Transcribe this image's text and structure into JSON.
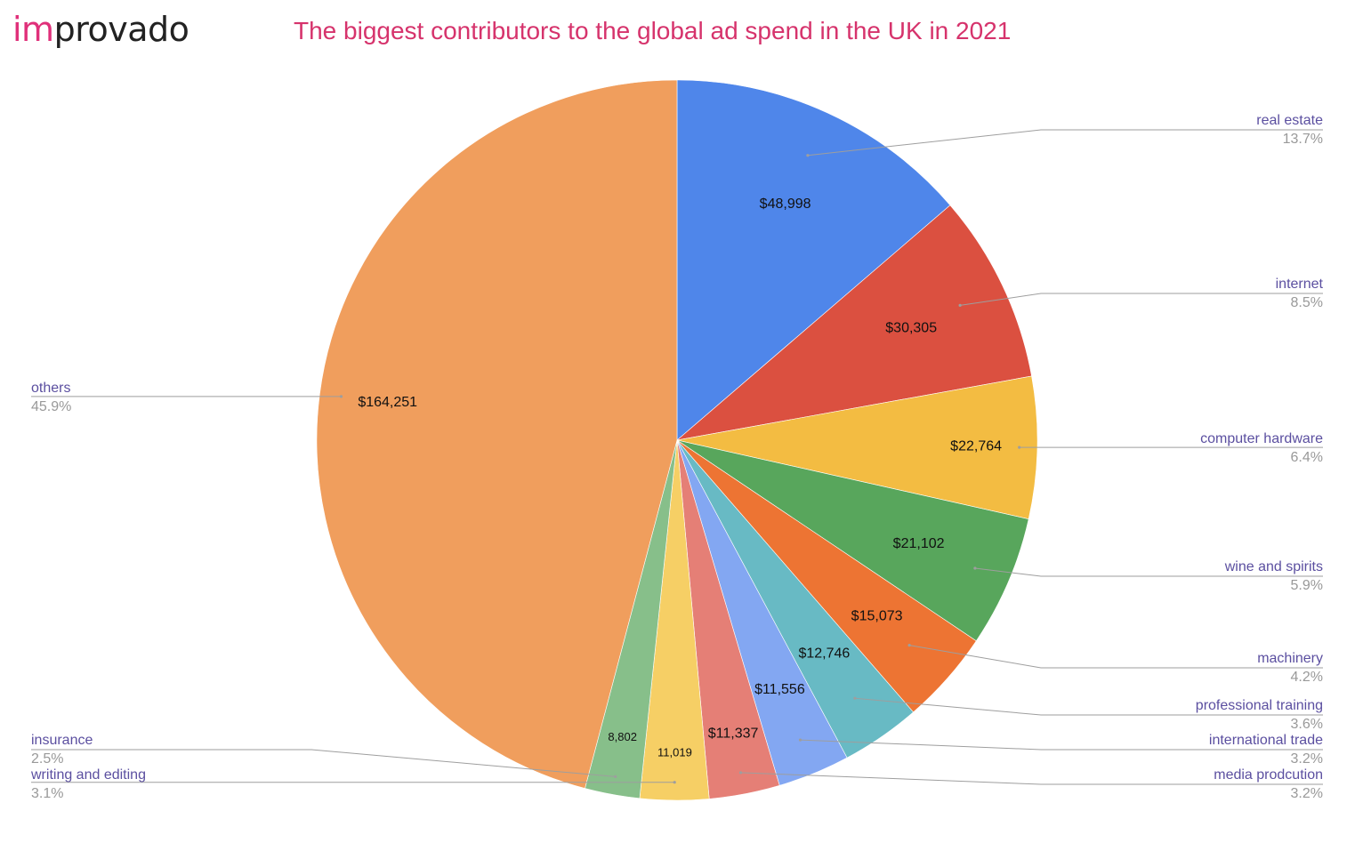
{
  "logo": {
    "accent": "im",
    "rest": "provado"
  },
  "colors": {
    "title": "#d6336c",
    "label_name": "#5b4fa0",
    "label_pct": "#999999",
    "leader": "#9e9e9e"
  },
  "chart_data": {
    "type": "pie",
    "title": "The biggest contributors to the global ad spend in the UK in 2021",
    "start_angle_deg": 0,
    "direction": "clockwise",
    "legend": "none",
    "slices": [
      {
        "label": "real estate",
        "value": 48998,
        "value_label": "$48,998",
        "percent_label": "13.7%",
        "color": "#4f86ea"
      },
      {
        "label": "internet",
        "value": 30305,
        "value_label": "$30,305",
        "percent_label": "8.5%",
        "color": "#db5040"
      },
      {
        "label": "computer hardware",
        "value": 22764,
        "value_label": "$22,764",
        "percent_label": "6.4%",
        "color": "#f3bc42"
      },
      {
        "label": "wine and spirits",
        "value": 21102,
        "value_label": "$21,102",
        "percent_label": "5.9%",
        "color": "#58a65c"
      },
      {
        "label": "machinery",
        "value": 15073,
        "value_label": "$15,073",
        "percent_label": "4.2%",
        "color": "#ed7433"
      },
      {
        "label": "professional training",
        "value": 12746,
        "value_label": "$12,746",
        "percent_label": "3.6%",
        "color": "#68bac4"
      },
      {
        "label": "international trade",
        "value": 11556,
        "value_label": "$11,556",
        "percent_label": "3.2%",
        "color": "#83a7f2"
      },
      {
        "label": "media prodcution",
        "value": 11337,
        "value_label": "$11,337",
        "percent_label": "3.2%",
        "color": "#e57f76"
      },
      {
        "label": "writing and editing",
        "value": 11019,
        "value_label": "11,019",
        "percent_label": "3.1%",
        "color": "#f6cf65"
      },
      {
        "label": "insurance",
        "value": 8802,
        "value_label": "8,802",
        "percent_label": "2.5%",
        "color": "#87bf8a"
      },
      {
        "label": "others",
        "value": 164251,
        "value_label": "$164,251",
        "percent_label": "45.9%",
        "color": "#f09e5d"
      }
    ]
  }
}
